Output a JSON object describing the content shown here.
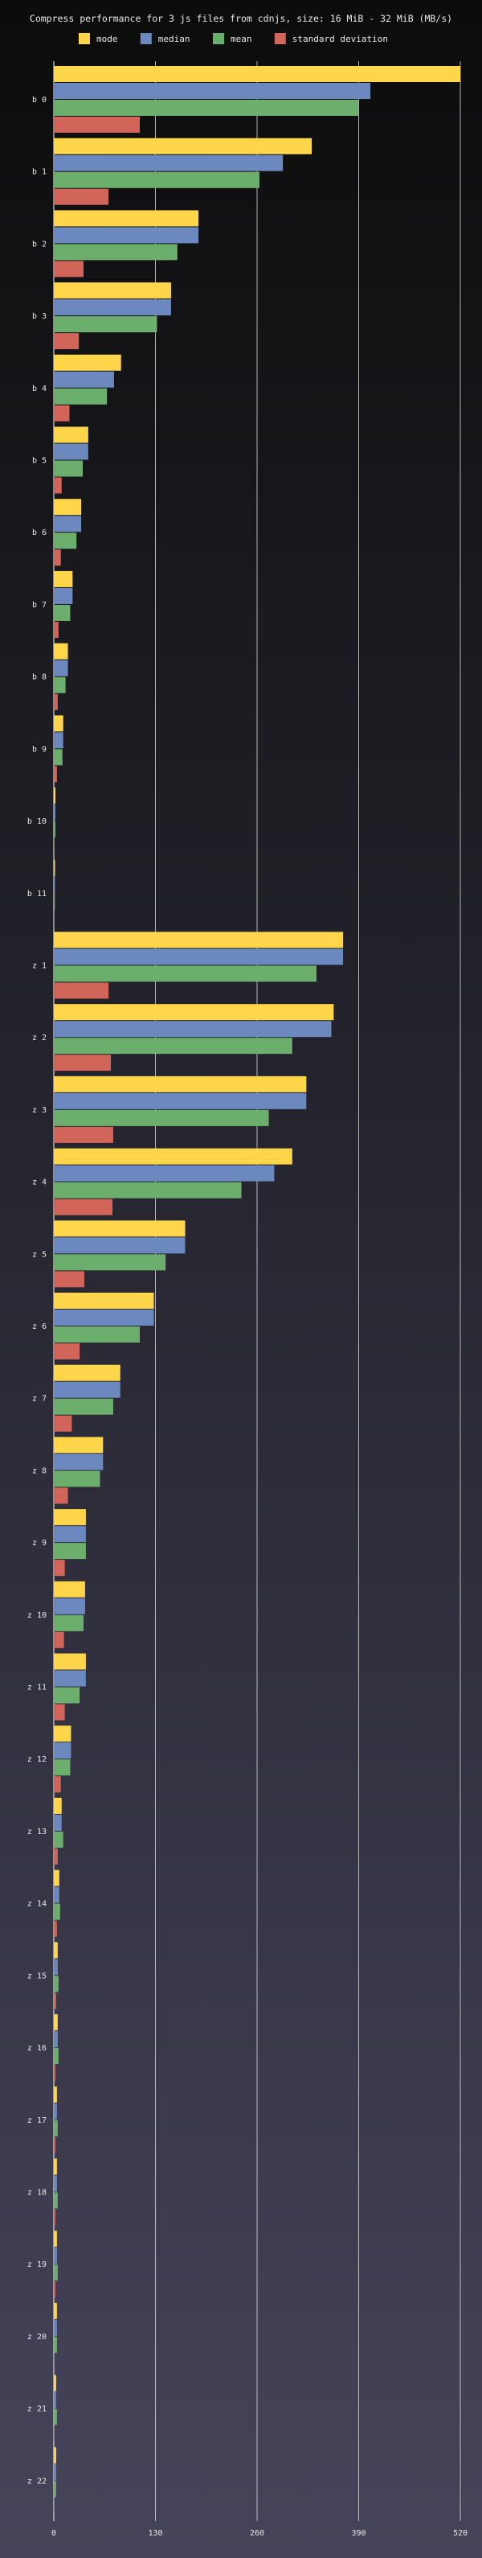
{
  "chart_data": {
    "type": "bar",
    "orientation": "horizontal",
    "title": "Compress performance for 3 js files from cdnjs, size: 16 MiB - 32 MiB (MB/s)",
    "xlabel": "",
    "ylabel": "",
    "xlim": [
      0,
      520
    ],
    "x_ticks": [
      0,
      130,
      260,
      390,
      520
    ],
    "grid": "vertical",
    "legend_position": "top",
    "background": [
      "#0c0c0c",
      "#46445a"
    ],
    "colors": {
      "mode": "#ffd54a",
      "median": "#6b89bf",
      "mean": "#6cae6c",
      "standard deviation": "#d26559"
    },
    "categories": [
      "b 0",
      "b 1",
      "b 2",
      "b 3",
      "b 4",
      "b 5",
      "b 6",
      "b 7",
      "b 8",
      "b 9",
      "b 10",
      "b 11",
      "z 1",
      "z 2",
      "z 3",
      "z 4",
      "z 5",
      "z 6",
      "z 7",
      "z 8",
      "z 9",
      "z 10",
      "z 11",
      "z 12",
      "z 13",
      "z 14",
      "z 15",
      "z 16",
      "z 17",
      "z 18",
      "z 19",
      "z 20",
      "z 21",
      "z 22"
    ],
    "series": [
      {
        "name": "mode",
        "values": [
          520,
          330,
          185,
          150,
          86,
          44,
          35,
          24,
          18,
          12,
          2,
          1.5,
          370,
          358,
          323,
          305,
          168,
          128,
          85,
          63,
          41,
          40,
          41,
          22,
          10,
          7,
          5,
          5,
          4,
          4,
          4,
          4,
          3,
          3
        ]
      },
      {
        "name": "median",
        "values": [
          405,
          293,
          185,
          150,
          77,
          44,
          35,
          24,
          18,
          12,
          2,
          1.5,
          370,
          355,
          323,
          282,
          168,
          128,
          85,
          63,
          41,
          40,
          41,
          22,
          10,
          7,
          5,
          5,
          4,
          4,
          4,
          4,
          3,
          3
        ]
      },
      {
        "name": "mean",
        "values": [
          390,
          263,
          158,
          132,
          68,
          37,
          29,
          21,
          15,
          11,
          2,
          1.3,
          336,
          305,
          275,
          240,
          143,
          110,
          76,
          59,
          41,
          38,
          33,
          21,
          12,
          8,
          6,
          6,
          5,
          5,
          5,
          4,
          4,
          3
        ]
      },
      {
        "name": "standard deviation",
        "values": [
          110,
          70,
          38,
          32,
          20,
          10,
          9,
          6,
          5,
          4,
          1,
          1,
          70,
          73,
          76,
          75,
          39,
          33,
          23,
          18,
          14,
          13,
          14,
          9,
          5,
          4,
          3,
          2,
          2,
          2,
          2,
          1,
          1,
          1
        ]
      }
    ]
  }
}
